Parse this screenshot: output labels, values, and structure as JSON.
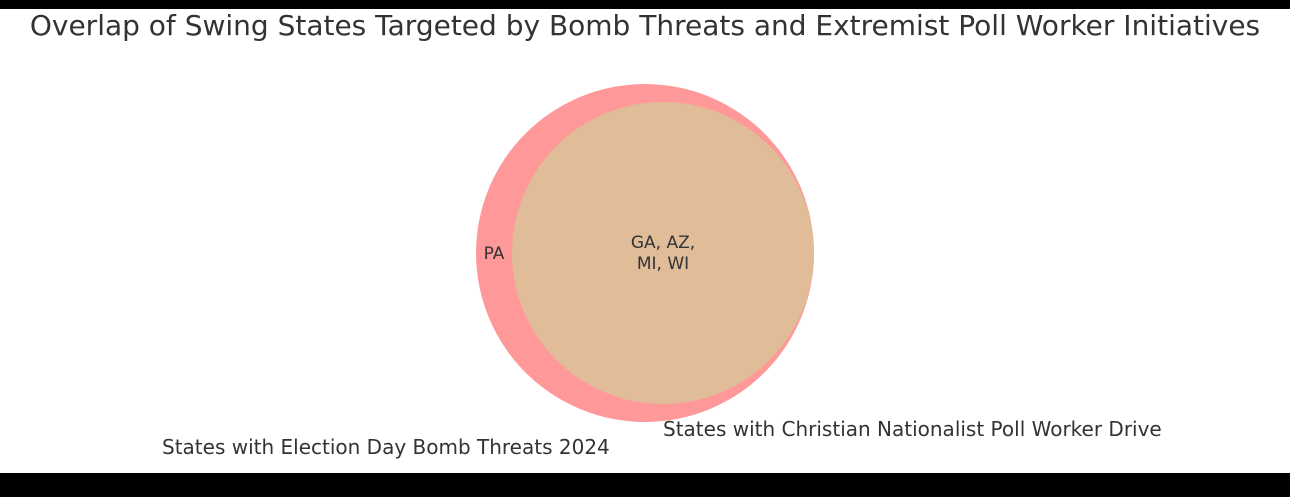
{
  "title": "Overlap of Swing States Targeted by Bomb Threats and Extremist Poll Worker Initiatives",
  "sets": [
    {
      "name": "States with Election Day Bomb Threats 2024",
      "color": "#ff9999"
    },
    {
      "name": "States with Christian Nationalist Poll Worker Drive",
      "color": "#66b3ff"
    }
  ],
  "regions": {
    "a_only": "PA",
    "intersection_line1": "GA, AZ,",
    "intersection_line2": "MI, WI"
  },
  "overlap_color": "#e0bc98"
}
